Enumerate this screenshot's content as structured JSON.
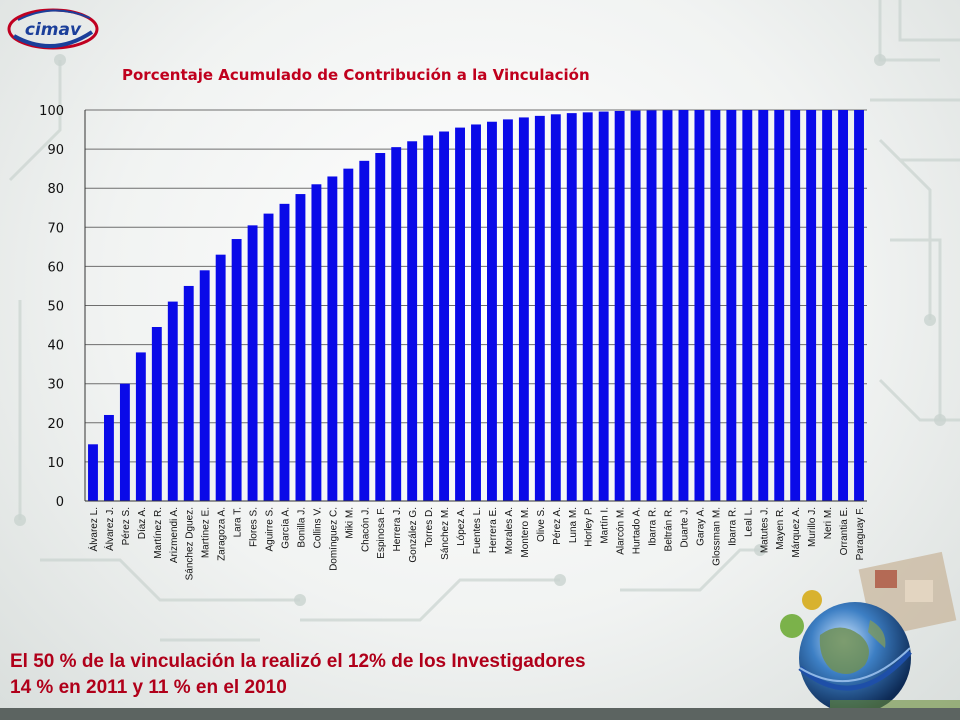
{
  "logo": {
    "text": "cimav"
  },
  "chart_data": {
    "type": "bar",
    "title": "Porcentaje Acumulado de Contribución a la Vinculación",
    "xlabel": "",
    "ylabel": "",
    "ylim": [
      0,
      100
    ],
    "y_ticks": [
      "0",
      "10",
      "20",
      "30",
      "40",
      "50",
      "60",
      "70",
      "80",
      "90",
      "100"
    ],
    "grid": true,
    "categories": [
      "Álvarez L.",
      "Álvarez J.",
      "Pérez S.",
      "Díaz A.",
      "Martínez R.",
      "Arizmendi A.",
      "Sánchez Dguez.",
      "Martínez E.",
      "Zaragoza A.",
      "Lara T.",
      "Flores S.",
      "Aguirre S.",
      "García A.",
      "Bonilla J.",
      "Collins V.",
      "Domínguez C.",
      "Miki M.",
      "Chacón J.",
      "Espinosa F.",
      "Herrera J.",
      "González G.",
      "Torres D.",
      "Sánchez M.",
      "López A.",
      "Fuentes L.",
      "Herrera E.",
      "Morales A.",
      "Montero M.",
      "Olive S.",
      "Pérez A.",
      "Luna M.",
      "Horley P.",
      "Martín I.",
      "Alarcón M.",
      "Hurtado A.",
      "Ibarra R.",
      "Beltrán R.",
      "Duarte J.",
      "Garay A.",
      "Glossman M.",
      "Ibarra R.",
      "Leal L.",
      "Matutes J.",
      "Mayen R.",
      "Márquez A.",
      "Murillo J.",
      "Neri M.",
      "Orrantia E.",
      "Paraguay F."
    ],
    "values": [
      14.5,
      22,
      30,
      38,
      44.5,
      51,
      55,
      59,
      63,
      67,
      70.5,
      73.5,
      76,
      78.5,
      81,
      83,
      85,
      87,
      89,
      90.5,
      92,
      93.5,
      94.5,
      95.5,
      96.3,
      97,
      97.6,
      98.1,
      98.5,
      98.9,
      99.2,
      99.4,
      99.6,
      99.75,
      99.85,
      99.9,
      99.95,
      100,
      100,
      100,
      100,
      100,
      100,
      100,
      100,
      100,
      100,
      100,
      100
    ],
    "bar_color": "#0a0ae8"
  },
  "caption": {
    "line1": "El 50 % de la  vinculación  la realizó el 12% de los Investigadores",
    "line2": "14 % en 2011 y 11 % en el 2010",
    "color": "#b0001a"
  },
  "title_color": "#c0001d"
}
